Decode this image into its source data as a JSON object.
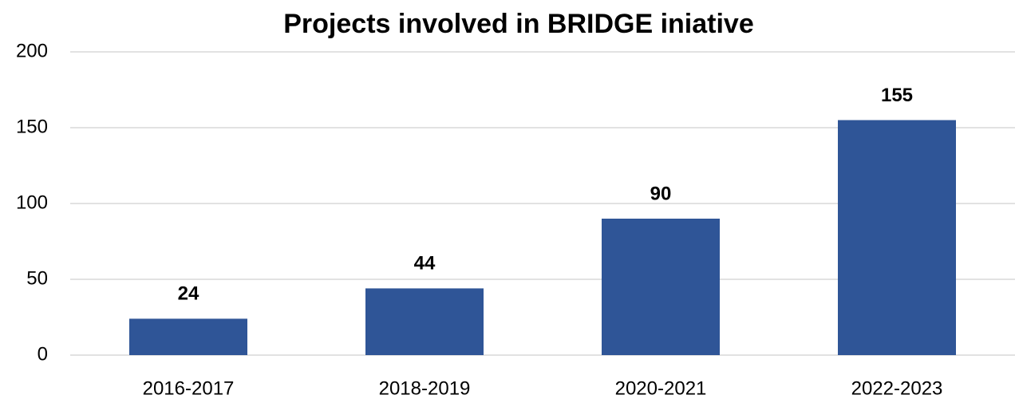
{
  "chart_data": {
    "type": "bar",
    "title": "Projects involved in BRIDGE iniative",
    "categories": [
      "2016-2017",
      "2018-2019",
      "2020-2021",
      "2022-2023"
    ],
    "values": [
      24,
      44,
      90,
      155
    ],
    "color": "#2f5597",
    "ylim": [
      0,
      200
    ],
    "yticks": [
      0,
      50,
      100,
      150,
      200
    ],
    "grid": true
  }
}
